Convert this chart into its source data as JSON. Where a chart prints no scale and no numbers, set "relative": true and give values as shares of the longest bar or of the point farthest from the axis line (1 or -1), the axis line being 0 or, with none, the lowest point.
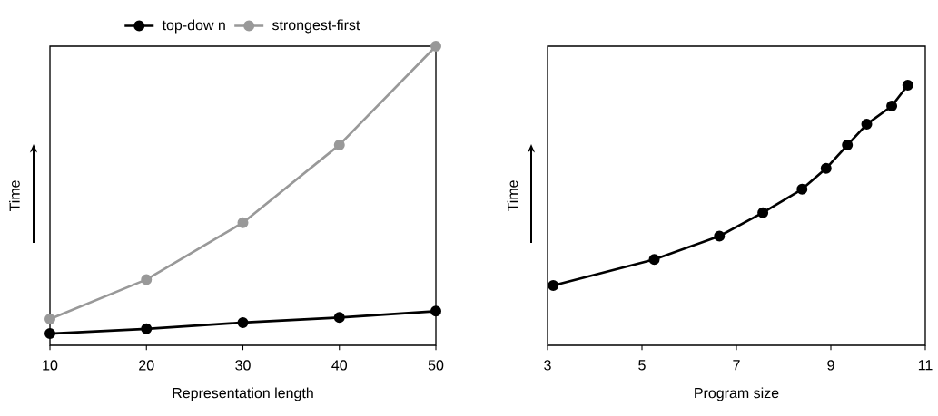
{
  "chart_data": [
    {
      "type": "line",
      "xlabel": "Representation length",
      "ylabel": "Time",
      "relative": true,
      "marker": "circle",
      "legend": "top",
      "x": [
        10,
        20,
        30,
        40,
        50
      ],
      "xlim": [
        10,
        50
      ],
      "xticks": [
        10,
        20,
        30,
        40,
        50
      ],
      "series": [
        {
          "name": "top-dow n",
          "color": "#000000",
          "values": [
            0.039,
            0.055,
            0.076,
            0.093,
            0.114
          ]
        },
        {
          "name": "strongest-first",
          "color": "#999999",
          "values": [
            0.088,
            0.22,
            0.41,
            0.67,
            1.0
          ]
        }
      ]
    },
    {
      "type": "line",
      "xlabel": "Program size",
      "ylabel": "Time",
      "relative": true,
      "marker": "circle",
      "xlim": [
        3,
        11
      ],
      "xticks": [
        3,
        5,
        7,
        9,
        11
      ],
      "series": [
        {
          "color": "#000000",
          "x": [
            3.12,
            5.26,
            6.64,
            7.56,
            8.39,
            8.9,
            9.35,
            9.76,
            10.29,
            10.63
          ],
          "values": [
            0.23,
            0.33,
            0.42,
            0.51,
            0.6,
            0.68,
            0.77,
            0.85,
            0.92,
            1.0
          ]
        }
      ]
    }
  ]
}
